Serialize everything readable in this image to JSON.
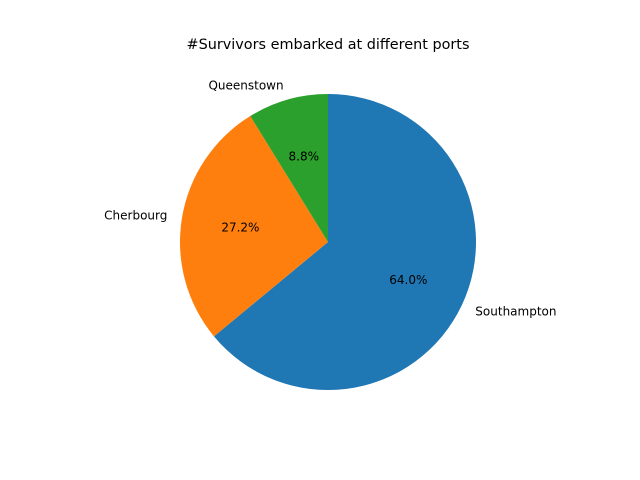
{
  "chart_data": {
    "type": "pie",
    "title": "#Survivors embarked at different ports",
    "slices": [
      {
        "label": "Southampton",
        "value": 64.0,
        "pct_label": "64.0%",
        "color": "#1f77b4"
      },
      {
        "label": "Cherbourg",
        "value": 27.2,
        "pct_label": "27.2%",
        "color": "#ff7f0e"
      },
      {
        "label": "Queenstown",
        "value": 8.8,
        "pct_label": "8.8%",
        "color": "#2ca02c"
      }
    ],
    "start_angle_deg": 90,
    "direction": "clockwise",
    "legend": "none"
  }
}
